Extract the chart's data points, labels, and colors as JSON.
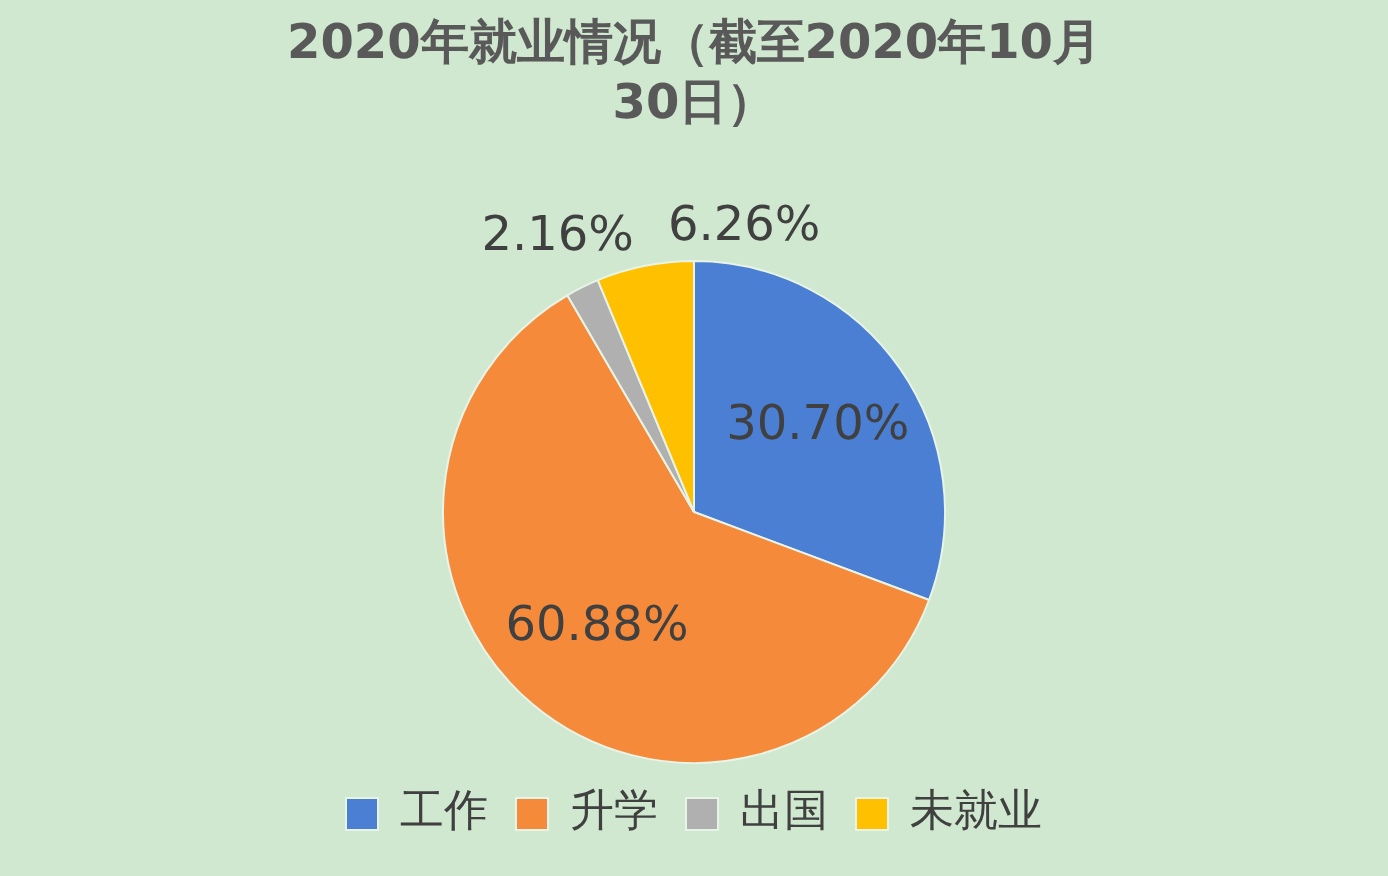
{
  "chart_data": {
    "type": "pie",
    "title": "2020年就业情况（截至2020年10月30日）",
    "categories": [
      "工作",
      "升学",
      "出国",
      "未就业"
    ],
    "values": [
      30.7,
      60.88,
      2.16,
      6.26
    ],
    "colors": [
      "#4a7fd4",
      "#f58b3a",
      "#b0b0b0",
      "#ffc000"
    ],
    "value_labels": [
      "30.70%",
      "60.88%",
      "2.16%",
      "6.26%"
    ],
    "legend": "bottom"
  }
}
